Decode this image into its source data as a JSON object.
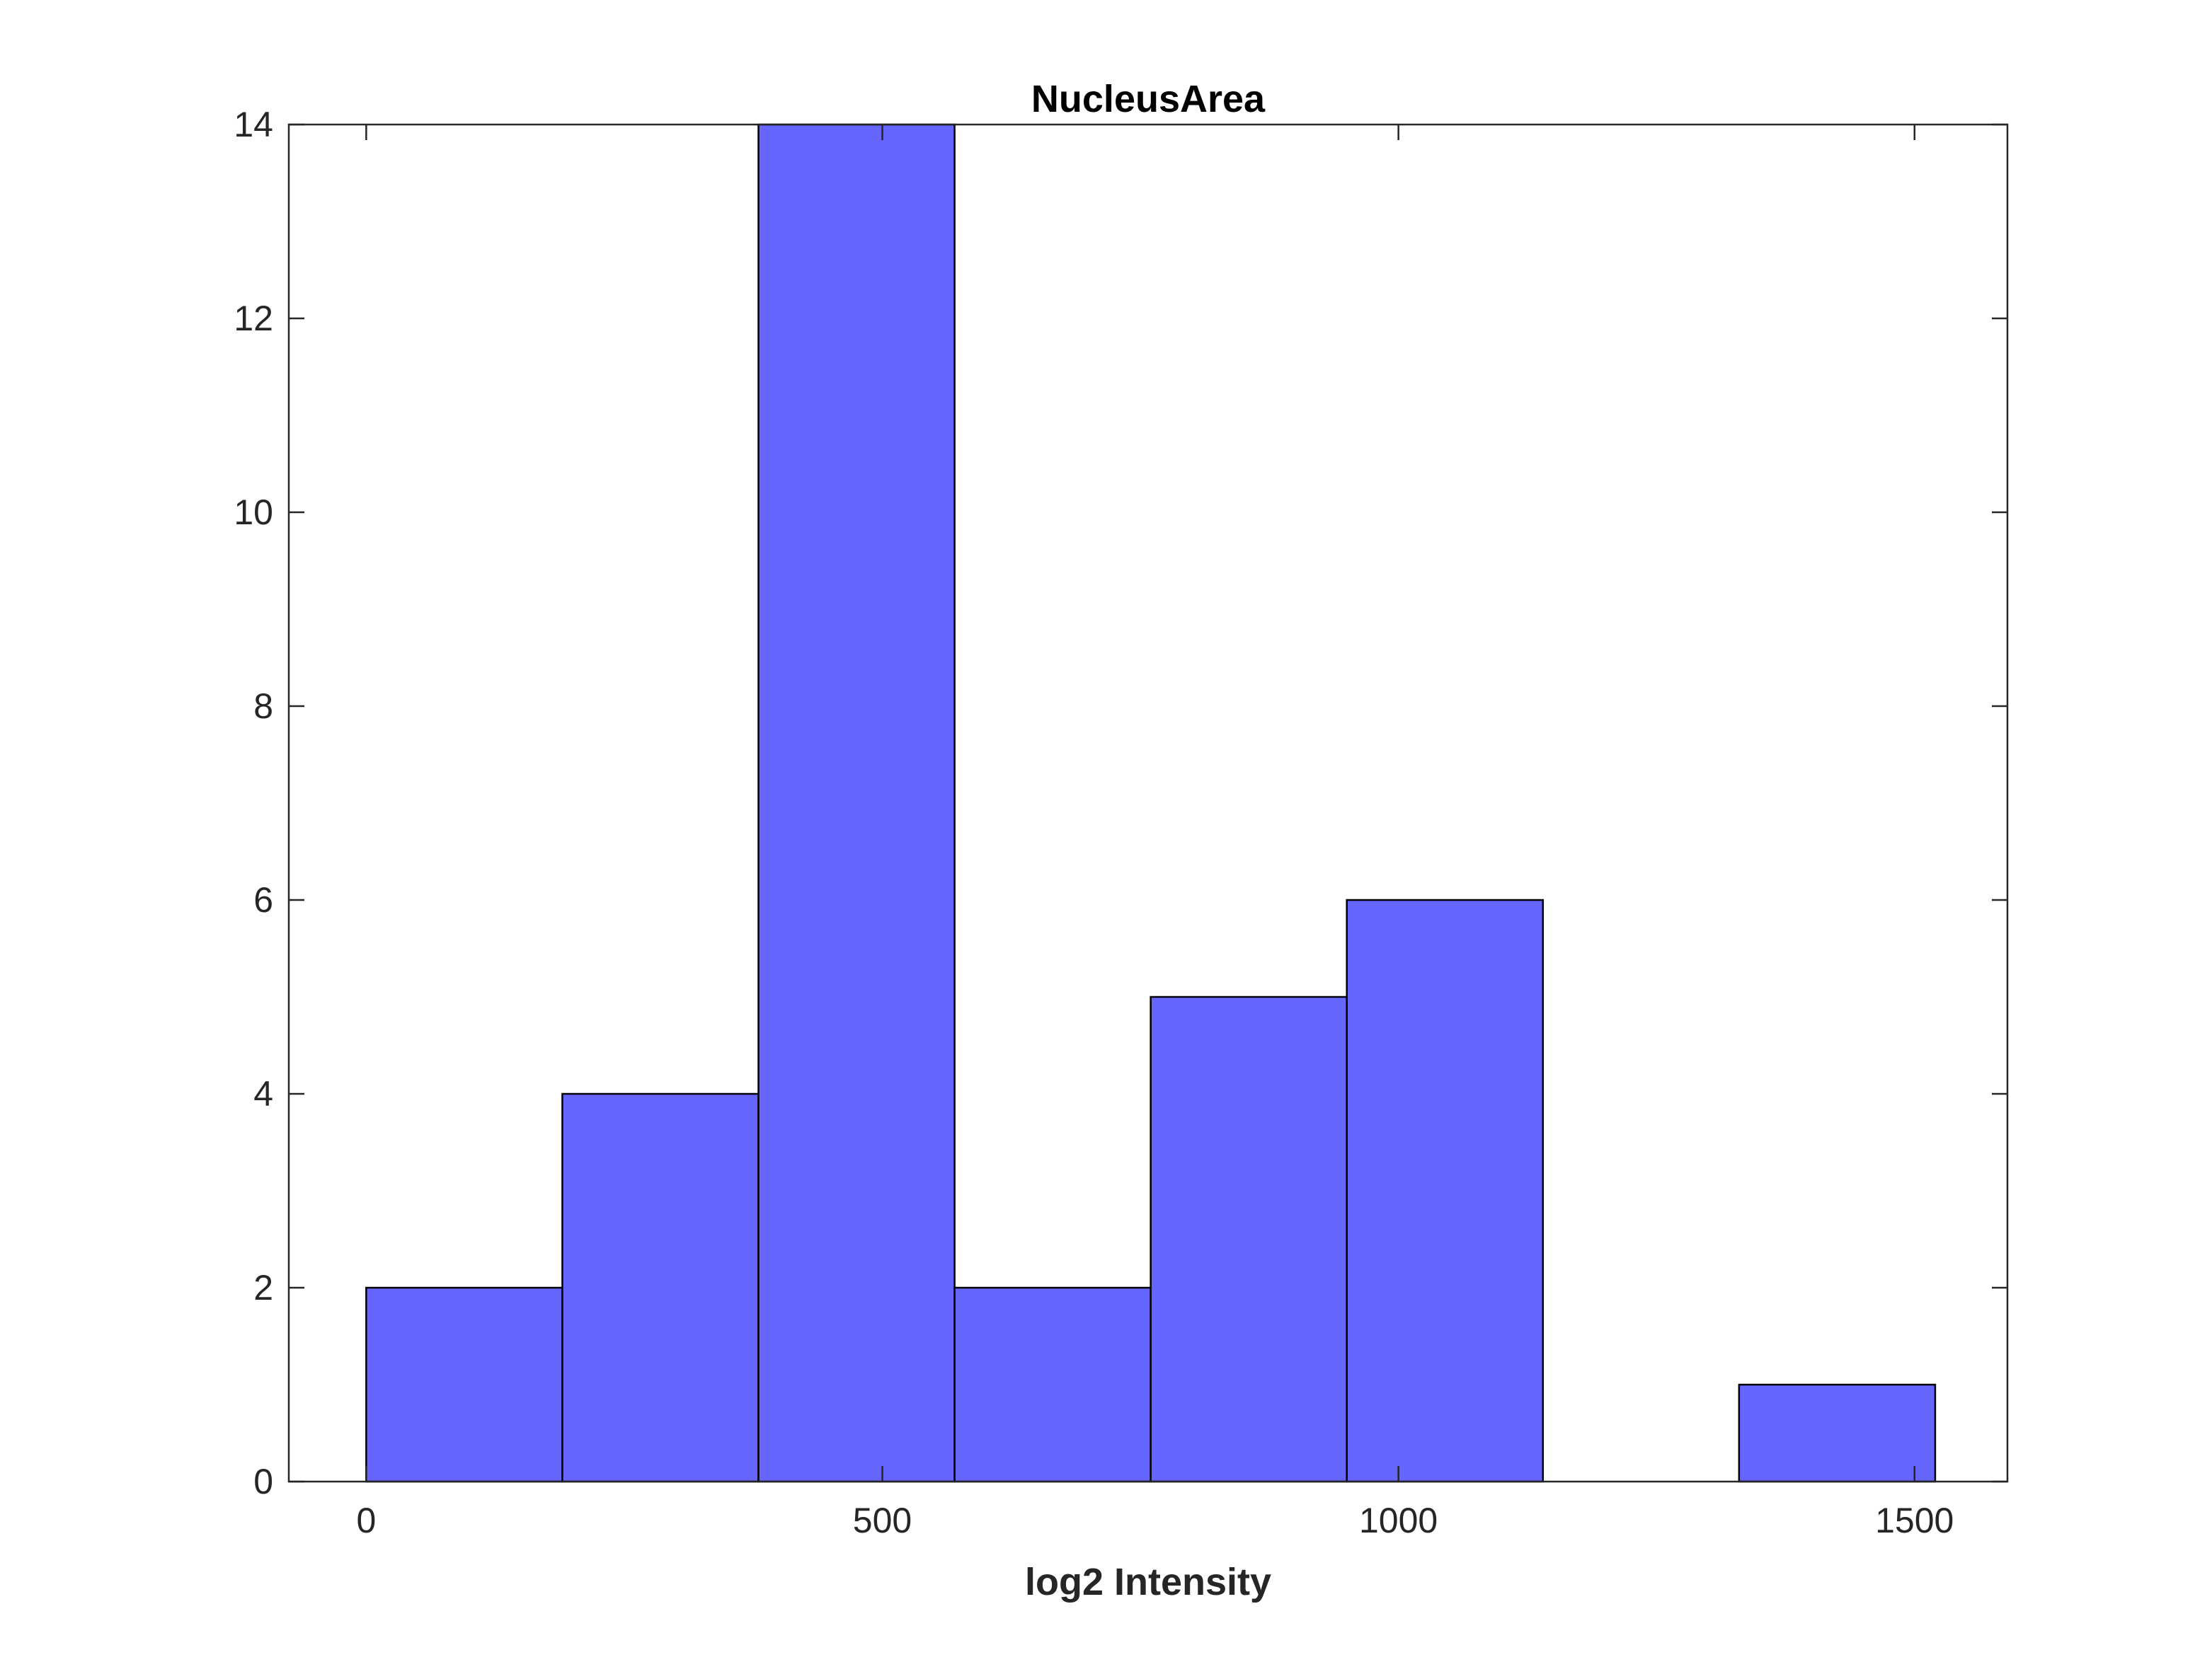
{
  "chart_data": {
    "type": "bar",
    "title": "NucleusArea",
    "xlabel": "log2 Intensity",
    "ylabel": "",
    "xlim": [
      -75,
      1590
    ],
    "ylim": [
      0,
      14
    ],
    "xticks": [
      0,
      500,
      1000,
      1500
    ],
    "yticks": [
      0,
      2,
      4,
      6,
      8,
      10,
      12,
      14
    ],
    "bin_edges": [
      0,
      190,
      380,
      570,
      760,
      950,
      1140,
      1330,
      1520
    ],
    "counts": [
      2,
      4,
      14,
      2,
      5,
      6,
      0,
      1
    ],
    "bar_color": "#6666ff",
    "edge_color": "#000000",
    "grid": false,
    "legend": "none"
  }
}
